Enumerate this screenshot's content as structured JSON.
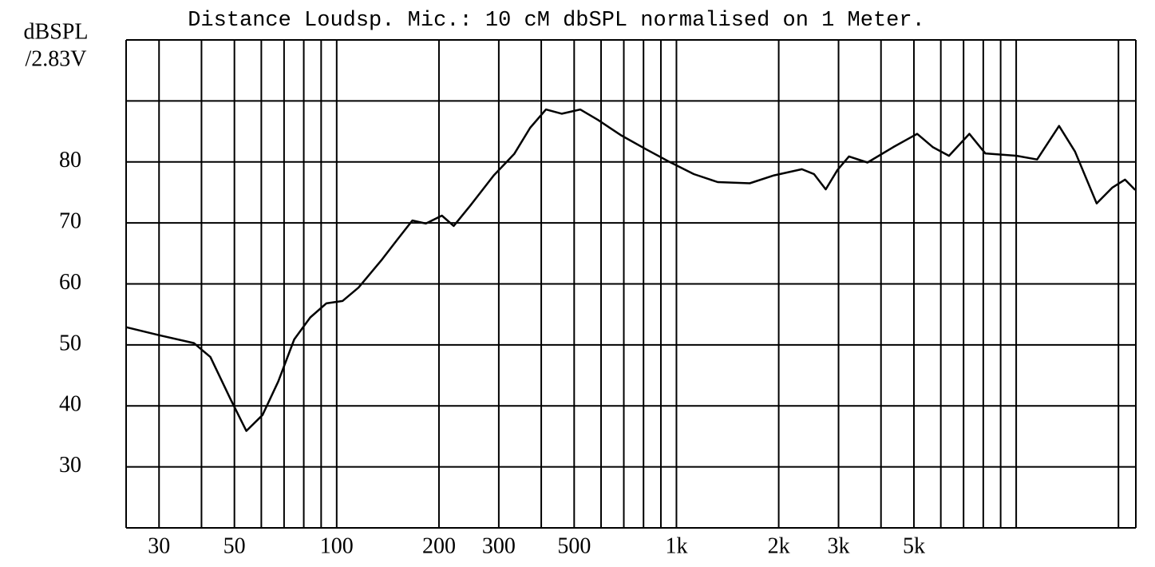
{
  "chart_data": {
    "type": "line",
    "title": "Distance Loudsp. Mic.: 10 cM dbSPL normalised on 1 Meter.",
    "ylabel": [
      "dBSPL",
      "/2.83V"
    ],
    "xscale": "log",
    "xlim": [
      24,
      22500
    ],
    "ylim": [
      20,
      100
    ],
    "xticks": [
      30,
      50,
      100,
      200,
      300,
      500,
      {
        "value": 1000,
        "label": "1k"
      },
      {
        "value": 2000,
        "label": "2k"
      },
      {
        "value": 3000,
        "label": "3k"
      },
      {
        "value": 5000,
        "label": "5k"
      }
    ],
    "yticks": [
      30,
      40,
      50,
      60,
      70,
      80
    ],
    "xgrid": [
      30,
      40,
      50,
      60,
      70,
      80,
      90,
      100,
      200,
      300,
      400,
      500,
      600,
      700,
      800,
      900,
      1000,
      2000,
      3000,
      4000,
      5000,
      6000,
      7000,
      8000,
      9000,
      10000,
      20000
    ],
    "ygrid": [
      20,
      30,
      40,
      50,
      60,
      70,
      80,
      90,
      100
    ],
    "color": "#000000",
    "x": [
      24,
      30,
      38,
      42.5,
      48.7,
      54.2,
      60.5,
      67.3,
      75,
      83.6,
      93.2,
      104,
      116,
      136,
      151,
      167,
      183,
      204,
      221,
      247,
      290,
      333,
      371,
      413,
      460,
      521,
      587,
      690,
      812,
      955,
      1125,
      1322,
      1644,
      1937,
      2340,
      2540,
      2750,
      2980,
      3220,
      3650,
      4340,
      5110,
      5690,
      6340,
      7280,
      8110,
      10040,
      11520,
      13370,
      14900,
      17250,
      19200,
      20900,
      22400
    ],
    "values": [
      52.9,
      51.6,
      50.3,
      48,
      41.1,
      35.9,
      38.5,
      44,
      50.9,
      54.5,
      56.8,
      57.2,
      59.4,
      64,
      67.3,
      70.4,
      69.9,
      71.2,
      69.5,
      72.8,
      77.8,
      81.3,
      85.6,
      88.6,
      87.9,
      88.6,
      86.9,
      84.3,
      82.1,
      80,
      78,
      76.7,
      76.5,
      77.8,
      78.8,
      78,
      75.5,
      78.7,
      80.9,
      79.9,
      82.4,
      84.6,
      82.4,
      81,
      84.6,
      81.4,
      81,
      80.4,
      85.9,
      81.7,
      73.2,
      75.8,
      77.1,
      75.4
    ]
  }
}
